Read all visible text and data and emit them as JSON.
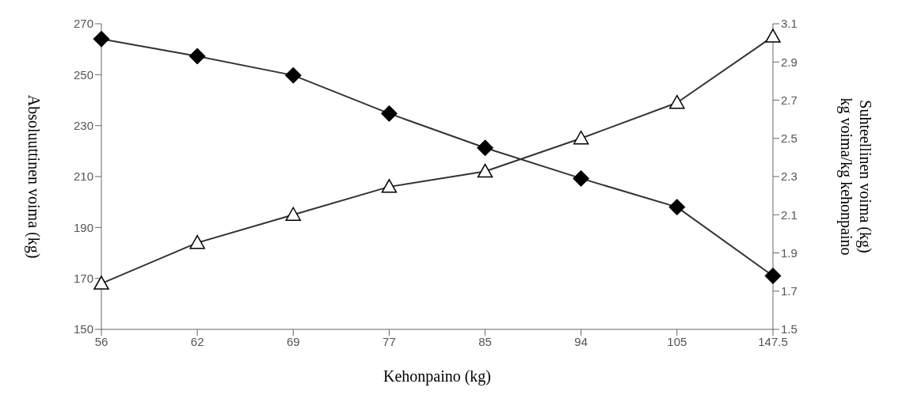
{
  "chart_data": {
    "type": "line",
    "xlabel": "Kehonpaino (kg)",
    "ylabel": "Absoluuttinen voima (kg)",
    "y2label": "Suhteellinen voima (kg)\nkg voima/kg kehonpaino",
    "categories": [
      "56",
      "62",
      "69",
      "77",
      "85",
      "94",
      "105",
      "147.5"
    ],
    "series": [
      {
        "color": "#333333",
        "marker": "triangle",
        "values": [
          168,
          184,
          195,
          206,
          212,
          225,
          239,
          265
        ]
      },
      {
        "color": "#333333",
        "marker": "diamond",
        "axis": "y2",
        "values": [
          3.02,
          2.93,
          2.83,
          2.63,
          2.45,
          2.29,
          2.14,
          1.78
        ]
      }
    ],
    "ylim": [
      150,
      270
    ],
    "yticks": [
      150,
      170,
      190,
      210,
      230,
      250,
      270
    ],
    "y2lim": [
      1.5,
      3.1
    ],
    "y2ticks": [
      1.5,
      1.7,
      1.9,
      2.1,
      2.3,
      2.5,
      2.7,
      2.9,
      3.1
    ],
    "grid": false,
    "legend": false,
    "line_style": "solid"
  }
}
